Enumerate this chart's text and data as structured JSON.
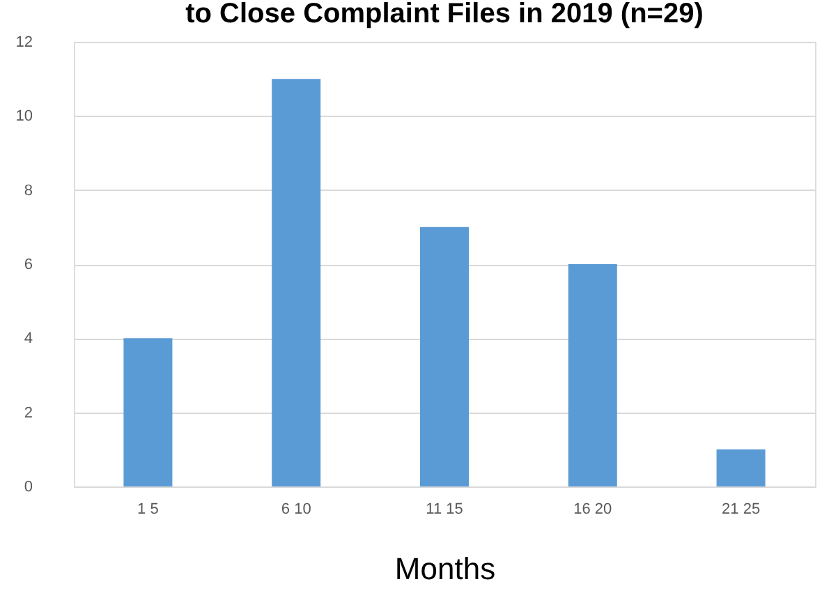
{
  "chart_data": {
    "type": "bar",
    "title": "to Close Complaint Files in 2019 (n=29)",
    "xlabel": "Months",
    "categories": [
      "1 5",
      "6 10",
      "11 15",
      "16 20",
      "21 25"
    ],
    "values": [
      4,
      11,
      7,
      6,
      1
    ],
    "color": "#5b9bd5",
    "ylim": [
      0,
      12
    ],
    "yticks": [
      0,
      2,
      4,
      6,
      8,
      10,
      12
    ],
    "grid": "y"
  }
}
